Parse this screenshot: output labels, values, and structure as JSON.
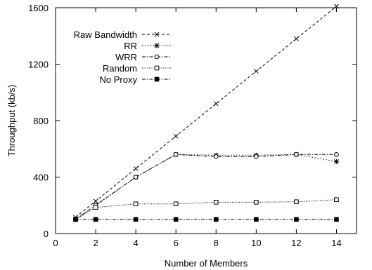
{
  "chart_data": {
    "type": "line",
    "title": "",
    "xlabel": "Number of Members",
    "ylabel": "Throughput (kb/s)",
    "xlim": [
      0,
      15
    ],
    "ylim": [
      0,
      1600
    ],
    "xticks": [
      0,
      2,
      4,
      6,
      8,
      10,
      12,
      14
    ],
    "yticks": [
      0,
      400,
      800,
      1200,
      1600
    ],
    "grid": false,
    "legend_position": "top-left",
    "series": [
      {
        "name": "Raw Bandwidth",
        "marker": "x",
        "dash": "dashed",
        "x": [
          1,
          2,
          4,
          6,
          8,
          10,
          12,
          14
        ],
        "y": [
          115,
          230,
          460,
          690,
          920,
          1150,
          1380,
          1610
        ]
      },
      {
        "name": "RR",
        "marker": "star",
        "dash": "dotted",
        "x": [
          1,
          2,
          4,
          6,
          8,
          10,
          12,
          14
        ],
        "y": [
          100,
          200,
          400,
          560,
          555,
          555,
          560,
          510
        ]
      },
      {
        "name": "WRR",
        "marker": "circle",
        "dash": "dashdot",
        "x": [
          1,
          2,
          4,
          6,
          8,
          10,
          12,
          14
        ],
        "y": [
          100,
          200,
          400,
          560,
          545,
          545,
          560,
          560
        ]
      },
      {
        "name": "Random",
        "marker": "square-open",
        "dash": "fine-dotted",
        "x": [
          1,
          2,
          4,
          6,
          8,
          10,
          12,
          14
        ],
        "y": [
          100,
          185,
          210,
          210,
          222,
          222,
          225,
          240
        ]
      },
      {
        "name": "No Proxy",
        "marker": "square-filled",
        "dash": "dashdot",
        "x": [
          1,
          2,
          4,
          6,
          8,
          10,
          12,
          14
        ],
        "y": [
          100,
          100,
          100,
          100,
          100,
          100,
          100,
          100
        ]
      }
    ]
  }
}
